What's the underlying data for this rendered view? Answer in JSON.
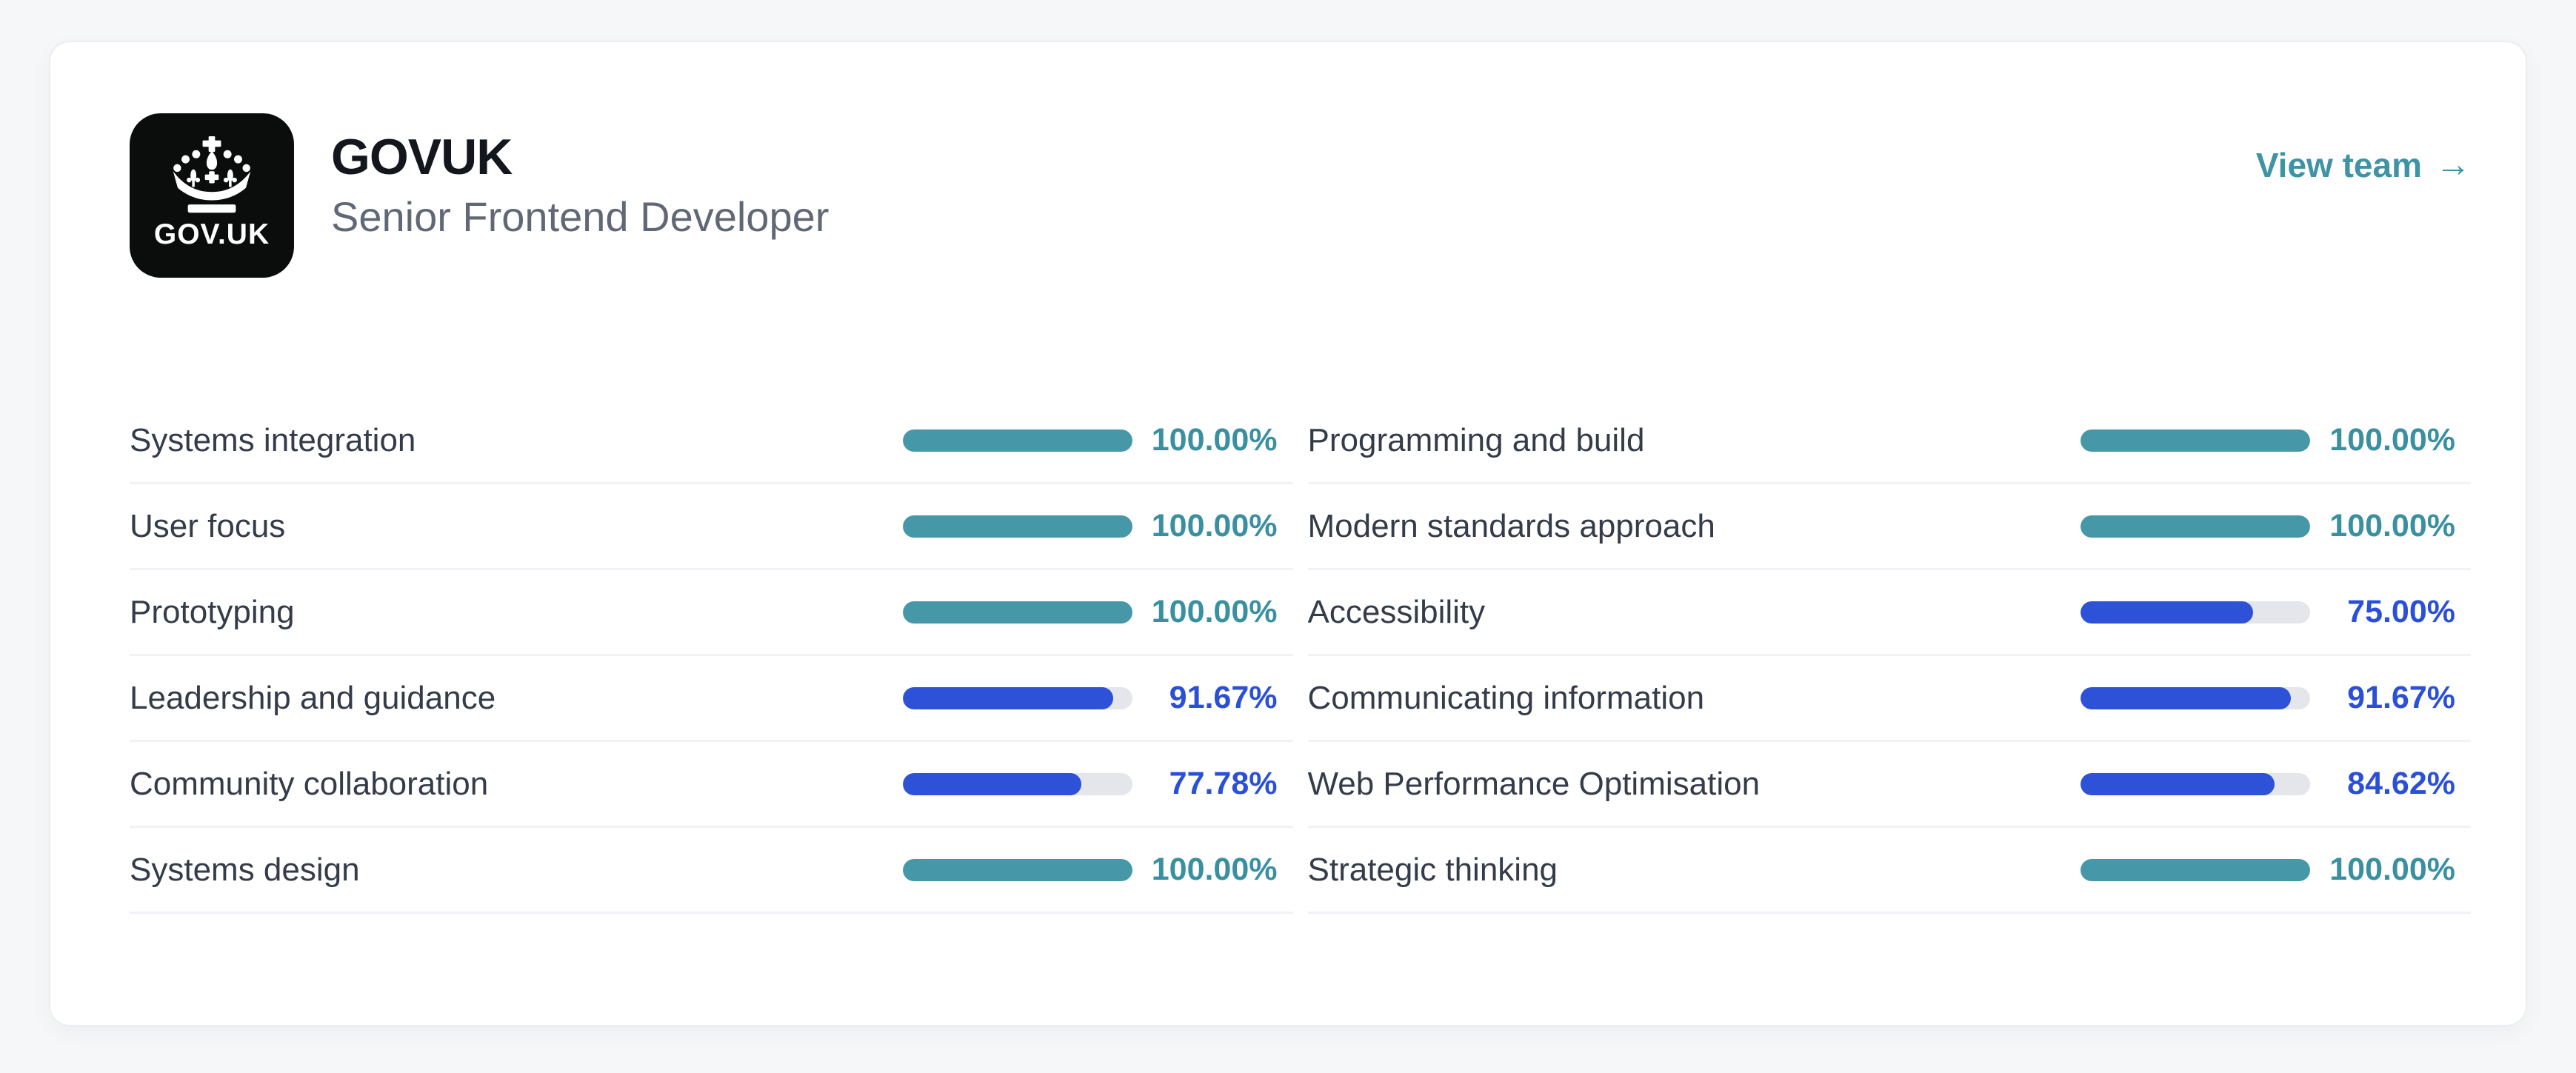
{
  "header": {
    "logo": {
      "text": "GOV.UK"
    },
    "title": "GOVUK",
    "subtitle": "Senior Frontend Developer",
    "view_team_label": "View team",
    "arrow_glyph": "→"
  },
  "colors": {
    "teal": "#4697a8",
    "teal_text": "#3a90a1",
    "blue": "#2d52d8",
    "blue_text": "#2b50d8",
    "track": "#e4e6eb",
    "link": "#3e93a4"
  },
  "skills": {
    "columns": [
      {
        "items": [
          {
            "label": "Systems integration",
            "percent": "100.00%",
            "value": 100,
            "color": "teal"
          },
          {
            "label": "User focus",
            "percent": "100.00%",
            "value": 100,
            "color": "teal"
          },
          {
            "label": "Prototyping",
            "percent": "100.00%",
            "value": 100,
            "color": "teal"
          },
          {
            "label": "Leadership and guidance",
            "percent": "91.67%",
            "value": 91.67,
            "color": "blue"
          },
          {
            "label": "Community collaboration",
            "percent": "77.78%",
            "value": 77.78,
            "color": "blue"
          },
          {
            "label": "Systems design",
            "percent": "100.00%",
            "value": 100,
            "color": "teal"
          }
        ]
      },
      {
        "items": [
          {
            "label": "Programming and build",
            "percent": "100.00%",
            "value": 100,
            "color": "teal"
          },
          {
            "label": "Modern standards approach",
            "percent": "100.00%",
            "value": 100,
            "color": "teal"
          },
          {
            "label": "Accessibility",
            "percent": "75.00%",
            "value": 75,
            "color": "blue"
          },
          {
            "label": "Communicating information",
            "percent": "91.67%",
            "value": 91.67,
            "color": "blue"
          },
          {
            "label": "Web Performance Optimisation",
            "percent": "84.62%",
            "value": 84.62,
            "color": "blue"
          },
          {
            "label": "Strategic thinking",
            "percent": "100.00%",
            "value": 100,
            "color": "teal"
          }
        ]
      }
    ]
  }
}
